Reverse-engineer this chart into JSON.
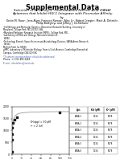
{
  "title": "Supplemental Data",
  "subtitle_line1": "Selection of 2’-Deoxy-2’-Fluoroarabino Nucleic Acid (FANA)",
  "subtitle_line2": "Aptamers that Inhibit HIV-1 Integrase with Picomolar Affinity",
  "by_text": "by",
  "authors": "Kevin M. Russ¹, Jana Alves Fonseca-Ramos², Alex Li², Robert Craigie³, Mark A. Dittrich⁴,",
  "authors2": "Philip Balligerµ, and Jeffrey J. DeStefano¹",
  "affiliations": [
    "¹Cell Biology and Molecular Genetics, Bioscience Research Building, University of",
    "Maryland, College Park, MD 20742 USA",
    "²Maryland Pathogen Research Institute (MPRI), College Park, MD...",
    "³Laboratory of Molecular Biology, National Institute of...",
    "20892",
    "⁴Technology Branch, Space Science and Astrobiology Division, NASA Ames Research",
    "Center,",
    "Moffett Field, Ca 94035"
  ],
  "affil2": [
    "µMRC Laboratory of Molecular Biology, Francis Crick Avenue, Cambridge Biomedical",
    "Campus, Cambridge CB4 0QH UK"
  ],
  "corr1": "*To whom correspondence should be addressed",
  "corr2": "Phone: +1 301-405-5448",
  "corr3": "E-mail: rdestefano@umd.edu",
  "x_data": [
    0.0,
    0.3,
    0.5,
    1.0,
    2.0,
    5.0,
    10.0,
    100.0
  ],
  "y_data": [
    100,
    600,
    850,
    1100,
    1300,
    1450,
    1550,
    1750
  ],
  "ylabel": "Counts",
  "ymin": 0,
  "ymax": 2000,
  "xmin": 0,
  "xmax": 120,
  "yticks": [
    0,
    500,
    1000,
    1500,
    2000
  ],
  "annot_line1": "Kᵈ(app) = 50 pM",
  "annot_line2": "r² = 2 (or)",
  "background_color": "#ffffff",
  "curve_color": "#999999",
  "point_color": "#222222",
  "table_headers": [
    "Apt.",
    "Kd (pM)",
    "Kᵉ (pM)"
  ],
  "table_rows": [
    [
      "FANA-1",
      "1234",
      "5678"
    ],
    [
      "FANA-2",
      "1234",
      "5678"
    ],
    [
      "FANA-3",
      "1234",
      "5678"
    ],
    [
      "FANA-4",
      "1234",
      "5678"
    ],
    [
      "FANA-5",
      "1234",
      "5678"
    ],
    [
      "FANA-6",
      "1234",
      "5678"
    ]
  ]
}
